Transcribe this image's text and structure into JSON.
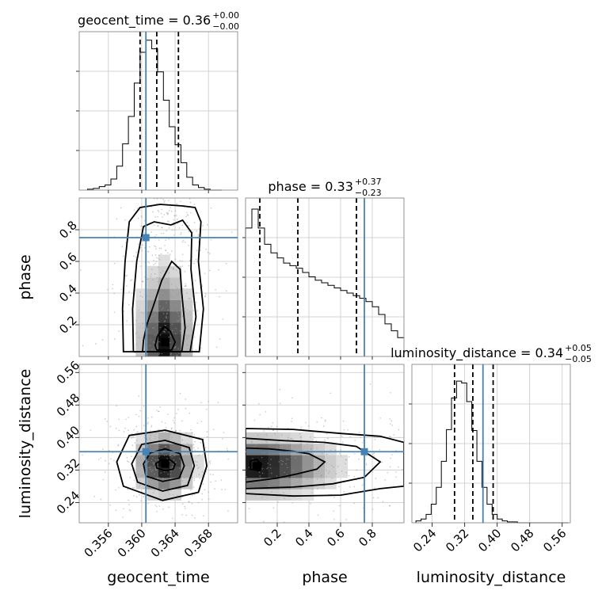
{
  "chart_data": {
    "type": "corner",
    "parameters": [
      {
        "key": "geocent_time",
        "label": "geocent_time",
        "range": [
          0.3525,
          0.3715
        ],
        "ticks": [
          0.356,
          0.36,
          0.364,
          0.368
        ],
        "tick_labels": [
          "0.356",
          "0.360",
          "0.364",
          "0.368"
        ],
        "title_main": "geocent_time = 0.36",
        "title_plus": "+0.00",
        "title_minus": "−0.00",
        "median": 0.3618,
        "lower": 0.3598,
        "upper": 0.3644,
        "truth": 0.3605,
        "hist_edges_start": 0.3535,
        "hist_bin_width": 0.0007,
        "hist_counts": [
          1,
          2,
          4,
          6,
          13,
          28,
          54,
          86,
          125,
          161,
          175,
          165,
          138,
          105,
          74,
          53,
          32,
          15,
          6,
          3,
          1,
          0,
          0
        ],
        "hist_max": 185
      },
      {
        "key": "phase",
        "label": "phase",
        "range": [
          0.0,
          1.0
        ],
        "ticks": [
          0.2,
          0.4,
          0.6,
          0.8
        ],
        "tick_labels": [
          "0.2",
          "0.4",
          "0.6",
          "0.8"
        ],
        "title_main": "phase = 0.33",
        "title_plus": "+0.37",
        "title_minus": "−0.23",
        "median": 0.33,
        "lower": 0.09,
        "upper": 0.7,
        "truth": 0.75,
        "hist_edges_start": 0.0,
        "hist_bin_width": 0.04,
        "hist_counts": [
          150,
          172,
          150,
          131,
          121,
          115,
          109,
          106,
          103,
          98,
          93,
          89,
          86,
          83,
          80,
          77,
          74,
          71,
          68,
          64,
          58,
          49,
          38,
          30,
          22
        ],
        "hist_max": 185
      },
      {
        "key": "luminosity_distance",
        "label": "luminosity_distance",
        "range": [
          0.19,
          0.58
        ],
        "ticks": [
          0.24,
          0.32,
          0.4,
          0.48,
          0.56
        ],
        "tick_labels": [
          "0.24",
          "0.32",
          "0.40",
          "0.48",
          "0.56"
        ],
        "title_main": "luminosity_distance = 0.34",
        "title_plus": "+0.05",
        "title_minus": "−0.05",
        "median": 0.34,
        "lower": 0.295,
        "upper": 0.39,
        "truth": 0.365,
        "hist_edges_start": 0.2,
        "hist_bin_width": 0.0125,
        "hist_counts": [
          2,
          4,
          9,
          20,
          38,
          66,
          100,
          134,
          152,
          150,
          130,
          99,
          66,
          38,
          20,
          9,
          4,
          2,
          1,
          1,
          0,
          0,
          0,
          0,
          0,
          0,
          0,
          0,
          0,
          0
        ],
        "hist_max": 170
      }
    ],
    "pairs": [
      {
        "x": "geocent_time",
        "y": "phase",
        "x_center": 0.3626,
        "y_center": 0.45,
        "x_sigma": 0.0019,
        "y_sigma": 0.28,
        "density_peak": [
          0.3628,
          0.09
        ],
        "contours": [
          [
            [
              0.3618,
              0.04
            ],
            [
              0.3636,
              0.04
            ],
            [
              0.364,
              0.09
            ],
            [
              0.3634,
              0.16
            ],
            [
              0.3627,
              0.19
            ],
            [
              0.3619,
              0.13
            ],
            [
              0.3616,
              0.07
            ]
          ],
          [
            [
              0.3601,
              0.03
            ],
            [
              0.3648,
              0.03
            ],
            [
              0.3652,
              0.18
            ],
            [
              0.3648,
              0.4
            ],
            [
              0.3646,
              0.55
            ],
            [
              0.3636,
              0.6
            ],
            [
              0.3624,
              0.48
            ],
            [
              0.3614,
              0.32
            ],
            [
              0.3606,
              0.2
            ],
            [
              0.3602,
              0.1
            ]
          ],
          [
            [
              0.359,
              0.03
            ],
            [
              0.3658,
              0.03
            ],
            [
              0.3665,
              0.25
            ],
            [
              0.3659,
              0.55
            ],
            [
              0.366,
              0.78
            ],
            [
              0.3649,
              0.86
            ],
            [
              0.3635,
              0.83
            ],
            [
              0.3615,
              0.85
            ],
            [
              0.3602,
              0.82
            ],
            [
              0.3594,
              0.6
            ],
            [
              0.3589,
              0.3
            ]
          ],
          [
            [
              0.3578,
              0.03
            ],
            [
              0.3669,
              0.03
            ],
            [
              0.3674,
              0.3
            ],
            [
              0.3668,
              0.6
            ],
            [
              0.3671,
              0.85
            ],
            [
              0.3664,
              0.94
            ],
            [
              0.3649,
              0.95
            ],
            [
              0.3622,
              0.96
            ],
            [
              0.3598,
              0.94
            ],
            [
              0.3585,
              0.85
            ],
            [
              0.358,
              0.6
            ],
            [
              0.3577,
              0.3
            ]
          ]
        ]
      },
      {
        "x": "geocent_time",
        "y": "luminosity_distance",
        "x_center": 0.3625,
        "y_center": 0.34,
        "x_sigma": 0.0022,
        "y_sigma": 0.048,
        "density_peak": [
          0.3628,
          0.335
        ],
        "contours": [
          [
            [
              0.3618,
              0.325
            ],
            [
              0.3628,
              0.318
            ],
            [
              0.3638,
              0.322
            ],
            [
              0.364,
              0.335
            ],
            [
              0.3634,
              0.345
            ],
            [
              0.3624,
              0.345
            ],
            [
              0.3617,
              0.336
            ]
          ],
          [
            [
              0.3605,
              0.305
            ],
            [
              0.3625,
              0.292
            ],
            [
              0.3645,
              0.3
            ],
            [
              0.3651,
              0.33
            ],
            [
              0.3646,
              0.36
            ],
            [
              0.3628,
              0.372
            ],
            [
              0.361,
              0.362
            ],
            [
              0.3602,
              0.335
            ]
          ],
          [
            [
              0.3595,
              0.29
            ],
            [
              0.3625,
              0.268
            ],
            [
              0.3655,
              0.282
            ],
            [
              0.3663,
              0.33
            ],
            [
              0.3657,
              0.375
            ],
            [
              0.3628,
              0.393
            ],
            [
              0.36,
              0.383
            ],
            [
              0.3588,
              0.335
            ]
          ],
          [
            [
              0.3578,
              0.28
            ],
            [
              0.3625,
              0.245
            ],
            [
              0.3668,
              0.265
            ],
            [
              0.3678,
              0.33
            ],
            [
              0.3673,
              0.395
            ],
            [
              0.3628,
              0.418
            ],
            [
              0.3585,
              0.405
            ],
            [
              0.357,
              0.34
            ]
          ]
        ]
      },
      {
        "x": "phase",
        "y": "luminosity_distance",
        "x_center": 0.4,
        "y_center": 0.335,
        "x_sigma": 0.3,
        "y_sigma": 0.045,
        "density_peak": [
          0.07,
          0.33
        ],
        "contours": [
          [
            [
              0.03,
              0.322
            ],
            [
              0.09,
              0.318
            ],
            [
              0.1,
              0.335
            ],
            [
              0.07,
              0.346
            ],
            [
              0.03,
              0.342
            ]
          ],
          [
            [
              0.0,
              0.29
            ],
            [
              0.2,
              0.3
            ],
            [
              0.32,
              0.31
            ],
            [
              0.45,
              0.322
            ],
            [
              0.5,
              0.34
            ],
            [
              0.4,
              0.36
            ],
            [
              0.3,
              0.366
            ],
            [
              0.15,
              0.372
            ],
            [
              0.0,
              0.374
            ]
          ],
          [
            [
              0.0,
              0.274
            ],
            [
              0.3,
              0.278
            ],
            [
              0.55,
              0.286
            ],
            [
              0.75,
              0.302
            ],
            [
              0.85,
              0.34
            ],
            [
              0.7,
              0.378
            ],
            [
              0.5,
              0.388
            ],
            [
              0.25,
              0.392
            ],
            [
              0.0,
              0.398
            ]
          ],
          [
            [
              0.0,
              0.262
            ],
            [
              0.3,
              0.256
            ],
            [
              0.6,
              0.258
            ],
            [
              0.85,
              0.274
            ],
            [
              1.0,
              0.28
            ],
            [
              1.0,
              0.388
            ],
            [
              0.85,
              0.403
            ],
            [
              0.6,
              0.41
            ],
            [
              0.3,
              0.42
            ],
            [
              0.0,
              0.422
            ]
          ]
        ]
      }
    ]
  }
}
